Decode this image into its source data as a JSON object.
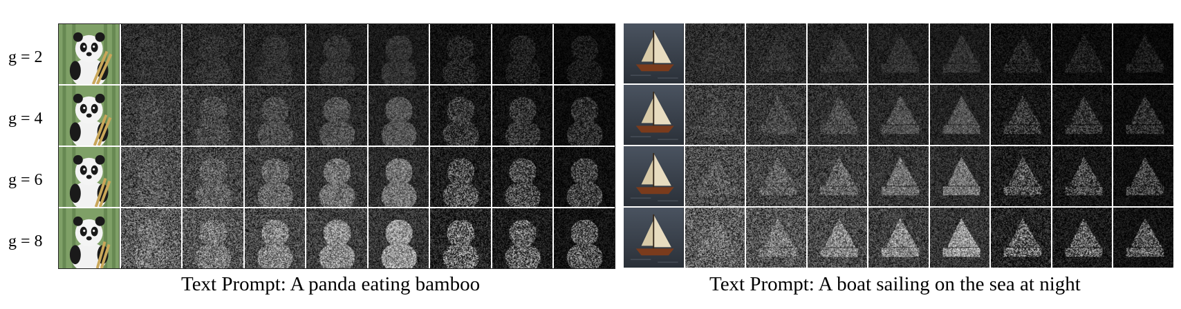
{
  "rows": [
    {
      "label": "g = 2",
      "g": 2
    },
    {
      "label": "g = 4",
      "g": 4
    },
    {
      "label": "g = 6",
      "g": 6
    },
    {
      "label": "g = 8",
      "g": 8
    }
  ],
  "panels": [
    {
      "id": "panda",
      "caption": "Text Prompt: A panda eating bamboo",
      "subject": "panda",
      "steps": 8
    },
    {
      "id": "boat",
      "caption": "Text Prompt: A boat sailing on the sea at night",
      "subject": "boat",
      "steps": 8
    }
  ],
  "colors": {
    "bamboo_bg": "#7fa067",
    "night_bg": "#2a3038",
    "sail": "#e8dcc0",
    "hull": "#7a3b1c"
  }
}
